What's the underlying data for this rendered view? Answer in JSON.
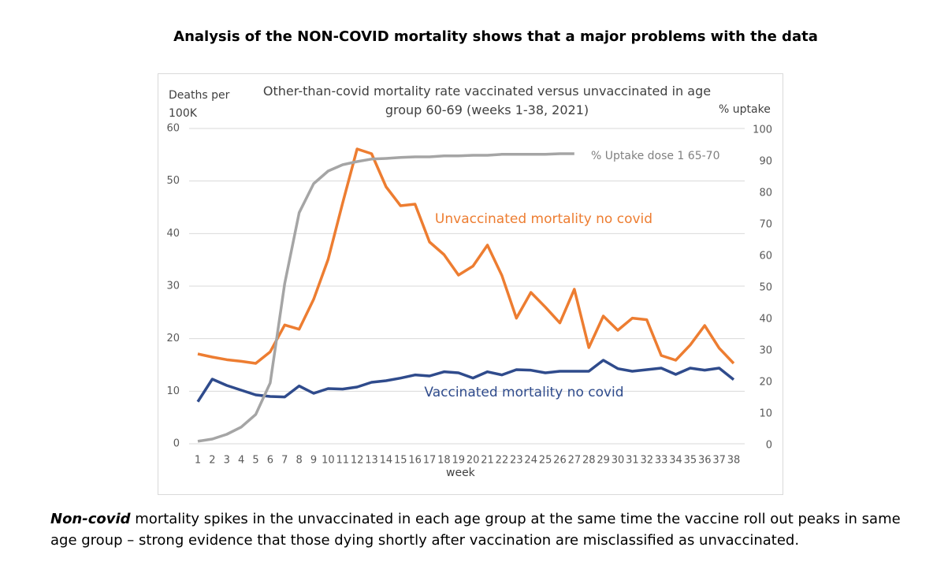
{
  "header": {
    "title": "Analysis of the NON-COVID mortality shows that a major problems with the data"
  },
  "chart_data": {
    "type": "line",
    "title": "Other-than-covid mortality rate vaccinated versus unvaccinated in age group 60-69  (weeks 1-38, 2021)",
    "ylabel": "Deaths per 100K",
    "y2label": "% uptake",
    "xlabel": "week",
    "x": [
      1,
      2,
      3,
      4,
      5,
      6,
      7,
      8,
      9,
      10,
      11,
      12,
      13,
      14,
      15,
      16,
      17,
      18,
      19,
      20,
      21,
      22,
      23,
      24,
      25,
      26,
      27,
      28,
      29,
      30,
      31,
      32,
      33,
      34,
      35,
      36,
      37,
      38
    ],
    "xlim": [
      1,
      38
    ],
    "ylim": [
      0,
      60
    ],
    "yticks": [
      0,
      10,
      20,
      30,
      40,
      50,
      60
    ],
    "y2lim": [
      0,
      100
    ],
    "y2ticks": [
      0,
      10,
      20,
      30,
      40,
      50,
      60,
      70,
      80,
      90,
      100
    ],
    "grid": true,
    "series": [
      {
        "name": "Unvaccinated mortality no covid",
        "color": "#ed7d31",
        "values": [
          17.1,
          16.5,
          16.0,
          15.7,
          15.3,
          17.5,
          22.6,
          21.8,
          27.5,
          35.1,
          45.8,
          56.1,
          55.2,
          48.9,
          45.3,
          45.6,
          38.4,
          36.0,
          32.1,
          33.8,
          37.8,
          32.0,
          23.9,
          28.8,
          26.0,
          23.0,
          29.4,
          18.3,
          24.3,
          21.6,
          23.9,
          23.6,
          16.8,
          15.9,
          18.8,
          22.5,
          18.2,
          15.3
        ]
      },
      {
        "name": "Vaccinated mortality no covid",
        "color": "#2f4b8c",
        "values": [
          8.0,
          12.3,
          11.1,
          10.2,
          9.3,
          9.0,
          8.9,
          11.0,
          9.6,
          10.5,
          10.4,
          10.8,
          11.7,
          12.0,
          12.5,
          13.1,
          12.9,
          13.7,
          13.5,
          12.5,
          13.7,
          13.1,
          14.1,
          14.0,
          13.5,
          13.8,
          13.8,
          13.8,
          15.9,
          14.3,
          13.8,
          14.1,
          14.4,
          13.2,
          14.4,
          14.0,
          14.4,
          12.2
        ]
      },
      {
        "name": "% Uptake dose 1 65-70",
        "color": "#a5a5a5",
        "axis": "y2",
        "values": [
          0.8,
          1.5,
          3.0,
          5.3,
          9.3,
          19.3,
          50.8,
          73.3,
          82.5,
          86.5,
          88.5,
          89.5,
          90.3,
          90.5,
          90.8,
          91.0,
          91.0,
          91.3,
          91.3,
          91.5,
          91.5,
          91.8,
          91.8,
          91.8,
          91.8,
          92.0,
          92.0,
          null,
          null,
          null,
          null,
          null,
          null,
          null,
          null,
          null,
          null,
          null
        ]
      }
    ]
  },
  "caption": {
    "emphasis": "Non-covid",
    "text": " mortality spikes in the unvaccinated in each age group at the same time the vaccine roll out peaks in same age group  – strong evidence that those dying shortly after vaccination are misclassified as unvaccinated."
  }
}
